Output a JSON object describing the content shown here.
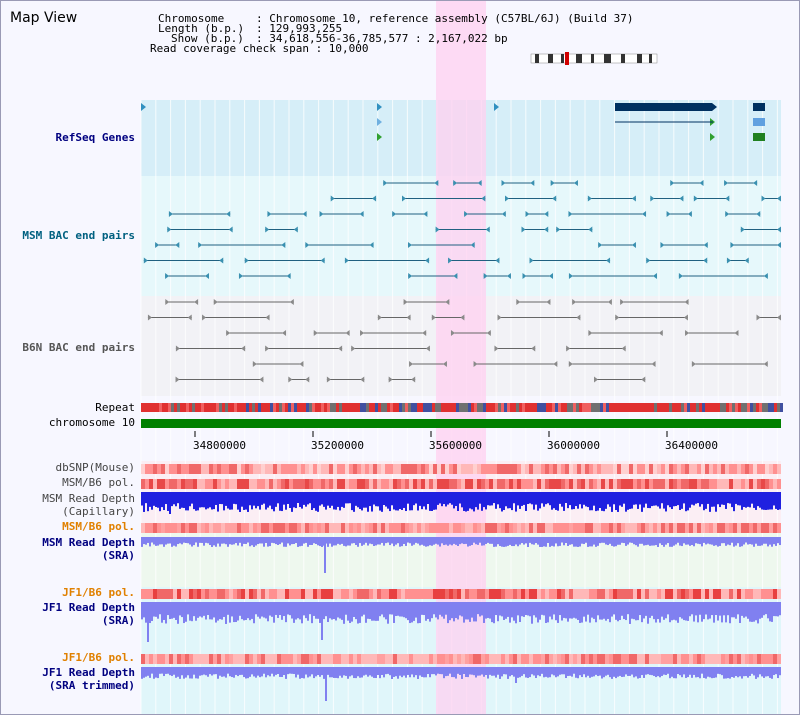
{
  "page": {
    "title": "Map View"
  },
  "header": {
    "chromosome_key": "Chromosome",
    "chromosome_value": ": Chromosome 10, reference assembly (C57BL/6J) (Build 37)",
    "length_key": "Length (b.p.)",
    "length_value": ": 129,993,255",
    "show_key": "Show (b.p.)",
    "show_value": ": 34,618,556-36,785,577 : 2,167,022 bp",
    "coverage": "Read coverage check span : 10,000"
  },
  "tracks": {
    "refseq": "RefSeq Genes",
    "msm_bac": "MSM BAC end pairs",
    "b6n_bac": "B6N BAC end pairs",
    "repeat": "Repeat",
    "chromosome": "chromosome 10",
    "dbsnp": "dbSNP(Mouse)",
    "msm_b6_pol_1": "MSM/B6 pol.",
    "msm_read_depth_cap_1": "MSM Read Depth",
    "msm_read_depth_cap_2": "(Capillary)",
    "msm_b6_pol_2": "MSM/B6 pol.",
    "msm_read_depth_sra_1": "MSM Read Depth",
    "msm_read_depth_sra_2": "(SRA)",
    "jf1_b6_pol_1": "JF1/B6 pol.",
    "jf1_read_depth_1": "JF1 Read Depth",
    "jf1_read_depth_2": "(SRA)",
    "jf1_b6_pol_2": "JF1/B6 pol.",
    "jf1_read_depth_trim_1": "JF1 Read Depth",
    "jf1_read_depth_trim_2": "(SRA trimmed)"
  },
  "ruler": {
    "ticks": [
      "34800000",
      "35200000",
      "35600000",
      "36000000",
      "36400000"
    ]
  },
  "colors": {
    "accent_label": "#000080",
    "orange_label": "#e08000",
    "teal_label": "#006080",
    "highlight": "#ffd0f0"
  }
}
